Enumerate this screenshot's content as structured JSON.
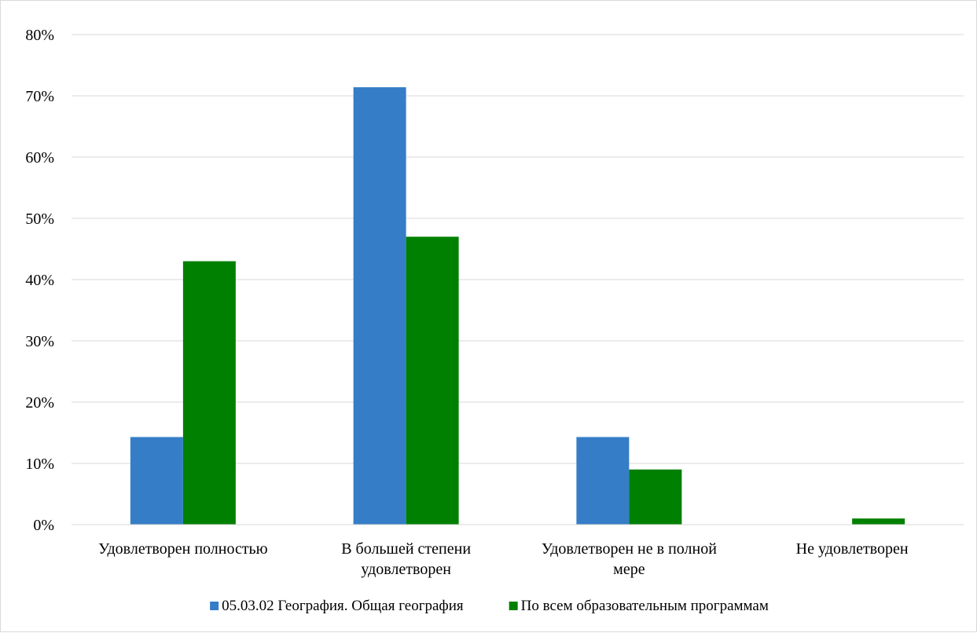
{
  "chart_data": {
    "type": "bar",
    "categories": [
      [
        "Удовлетворен полностью"
      ],
      [
        "В большей степени",
        "удовлетворен"
      ],
      [
        "Удовлетворен не в полной",
        "мере"
      ],
      [
        "Не удовлетворен"
      ]
    ],
    "series": [
      {
        "name": "05.03.02 География. Общая география",
        "color": "#357ec7",
        "values": [
          14.3,
          71.4,
          14.3,
          0
        ]
      },
      {
        "name": "По всем образовательным программам",
        "color": "#008000",
        "values": [
          43,
          47,
          9,
          1
        ]
      }
    ],
    "y_ticks": [
      "0%",
      "10%",
      "20%",
      "30%",
      "40%",
      "50%",
      "60%",
      "70%",
      "80%"
    ],
    "ylim": [
      0,
      80
    ],
    "grid": true,
    "legend_position": "bottom"
  }
}
